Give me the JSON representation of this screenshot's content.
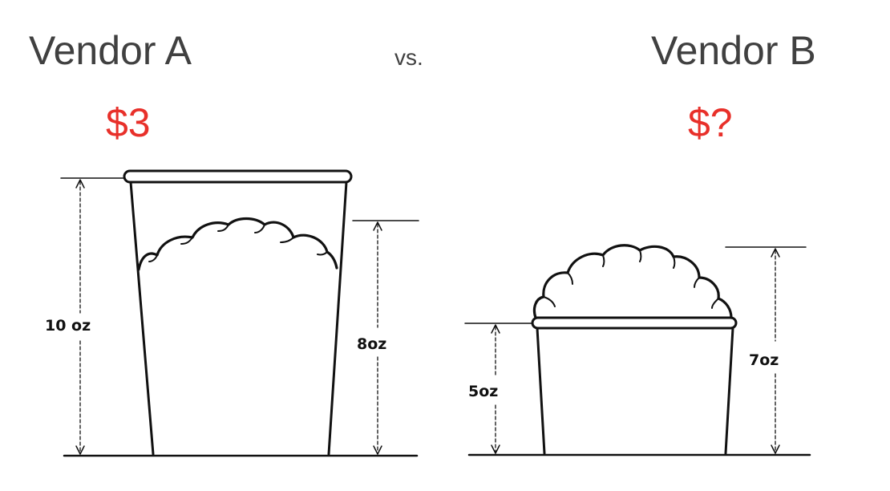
{
  "colors": {
    "price": "#e8302a",
    "heading": "#404040",
    "ink": "#111111"
  },
  "left": {
    "vendor": "Vendor A",
    "price": "$3",
    "cup_label": "10 oz",
    "popcorn_label": "8oz"
  },
  "middle": {
    "vs": "vs."
  },
  "right": {
    "vendor": "Vendor B",
    "price": "$?",
    "cup_label": "5oz",
    "popcorn_label": "7oz"
  }
}
